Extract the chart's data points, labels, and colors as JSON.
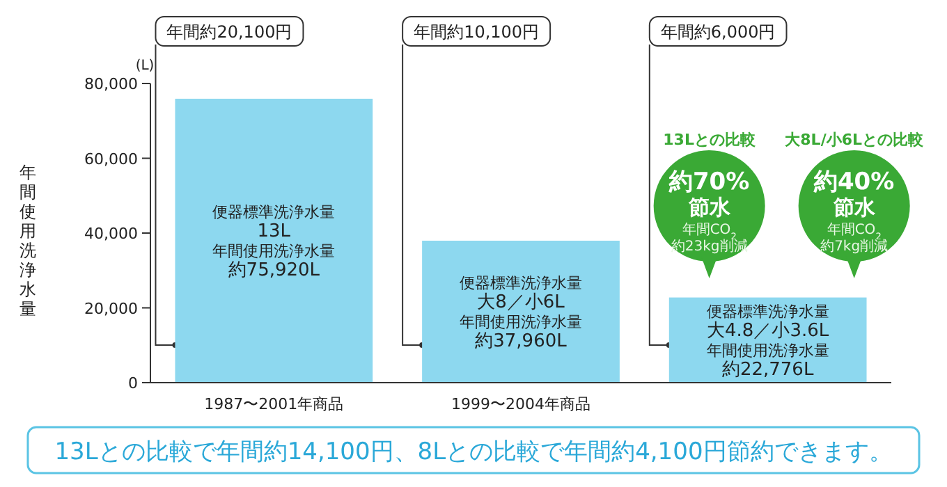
{
  "chart_data": {
    "type": "bar",
    "ylabel": "年間使用洗浄水量",
    "categories": [
      "1987〜2001年商品",
      "1999〜2004年商品",
      null
    ],
    "values": [
      75920,
      37960,
      22776
    ],
    "value_labels": [
      "約75,920L",
      "約37,960L",
      "約22,776L"
    ],
    "color": "#8dd8ef",
    "ylim": [
      0,
      80000
    ],
    "yticks": [
      {
        "value": 0,
        "label": "0"
      },
      {
        "value": 20000,
        "label": "20,000"
      },
      {
        "value": 40000,
        "label": "40,000"
      },
      {
        "value": 60000,
        "label": "60,000"
      },
      {
        "value": 80000,
        "label": "80,000"
      }
    ],
    "annotations": [
      "年間約20,100円",
      "年間約10,100円",
      "年間約6,000円",
      "便器標準洗浄水量",
      "13L",
      "年間使用洗浄水量",
      "便器標準洗浄水量",
      "大8／小6L",
      "年間使用洗浄水量",
      "便器標準洗浄水量",
      "大4.8／小3.6L",
      "年間使用洗浄水量",
      "13Lとの比較",
      "約70%",
      "節水",
      "年間CO$_{2}$",
      "約23kg削減",
      "大8L/小6Lとの比較",
      "約40%",
      "節水",
      "年間CO$_{2}$",
      "約7kg削減",
      "13Lとの比較で年間約14,100円、8Lとの比較で年間約4,100円節約できます。",
      "(L)"
    ]
  }
}
